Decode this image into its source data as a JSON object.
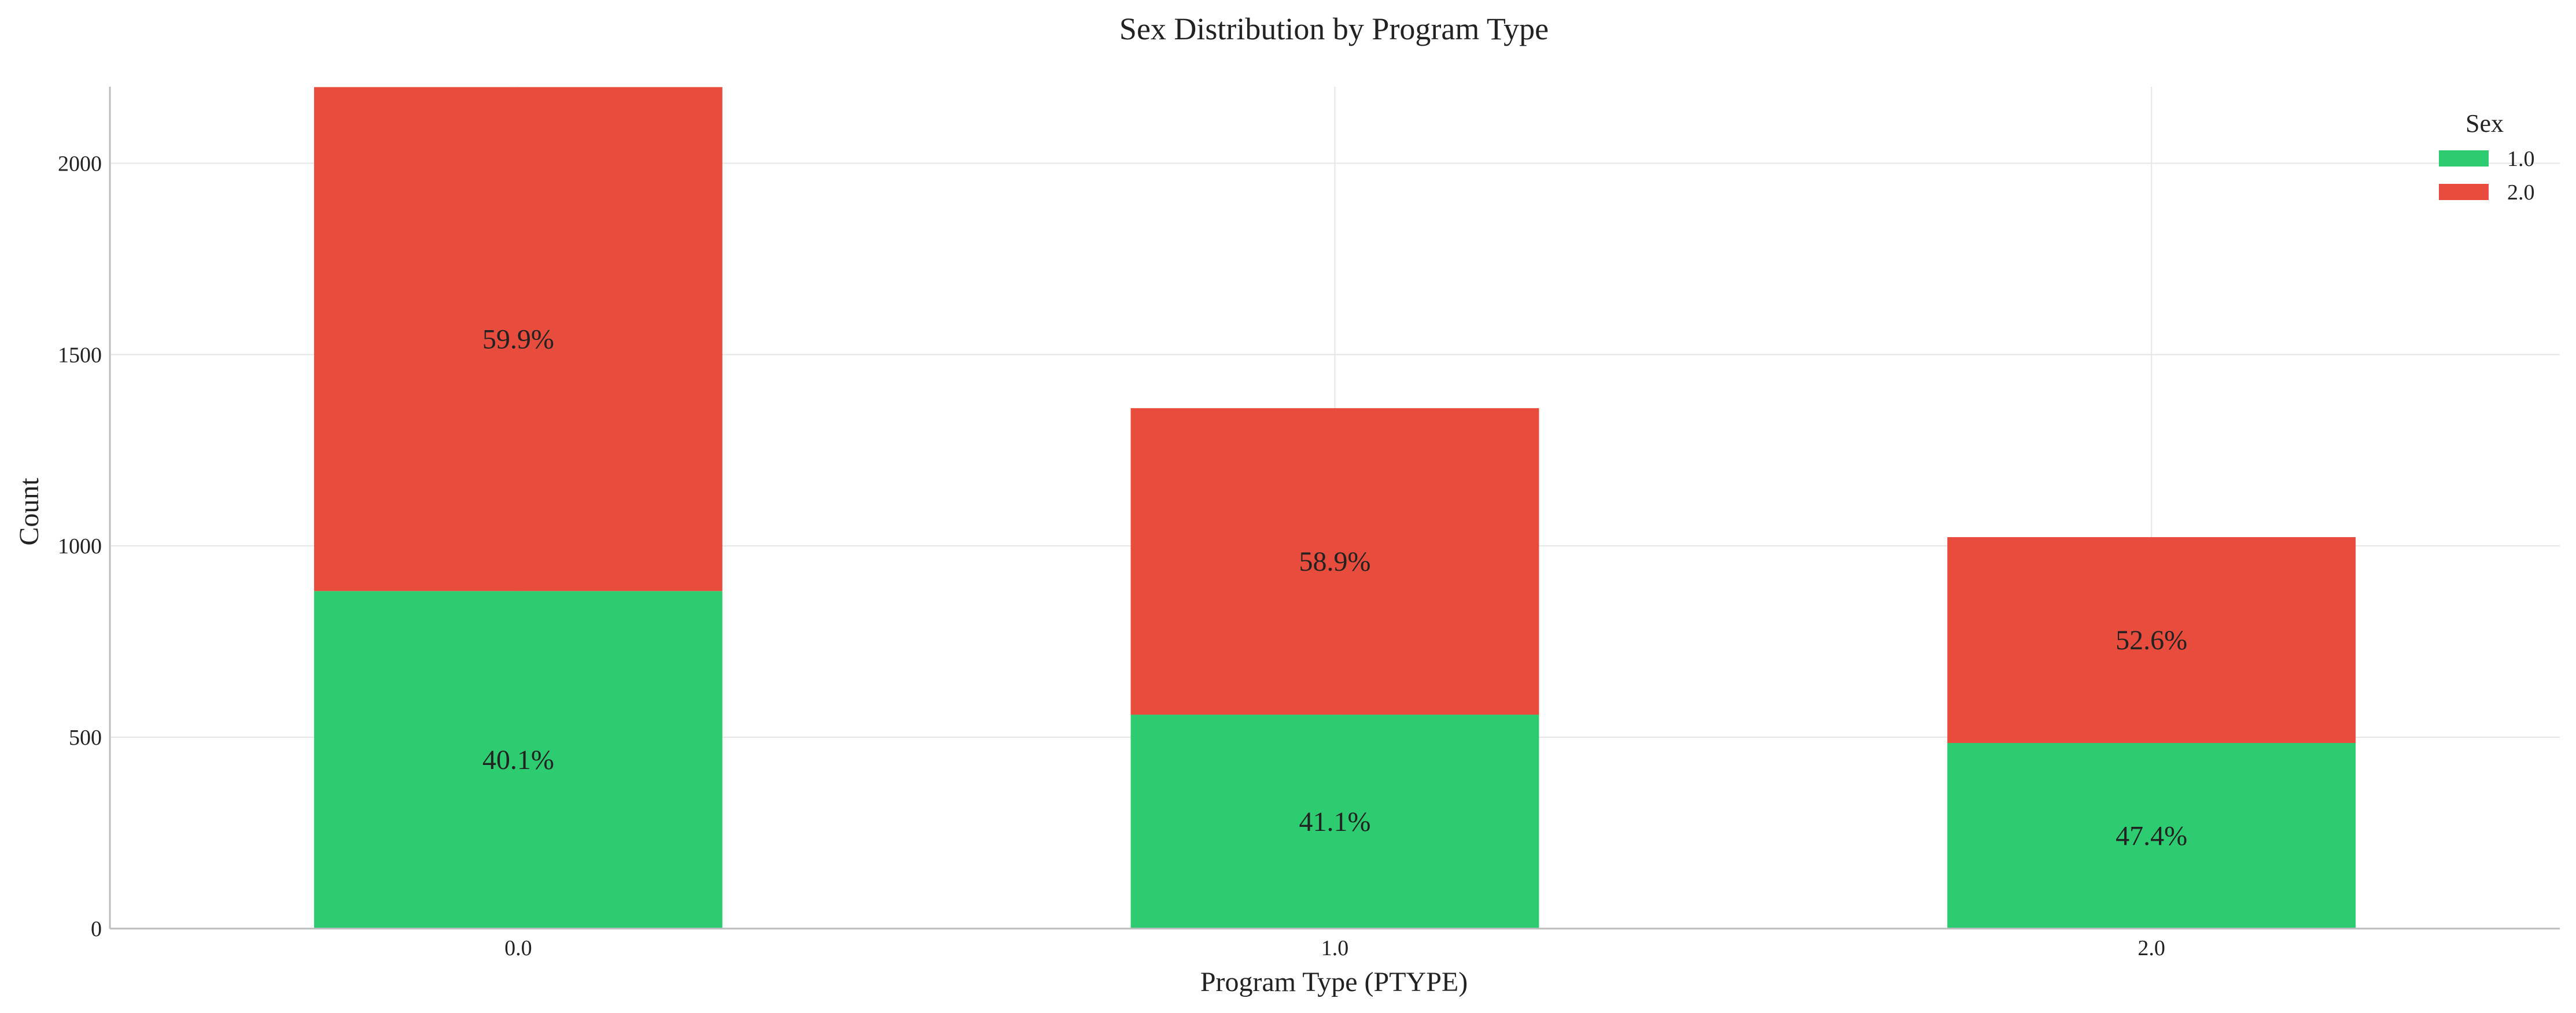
{
  "chart_data": {
    "type": "bar",
    "stacked": true,
    "title": "Sex Distribution by Program Type",
    "xlabel": "Program Type (PTYPE)",
    "ylabel": "Count",
    "categories": [
      "0.0",
      "1.0",
      "2.0"
    ],
    "ylim": [
      0,
      2200
    ],
    "yticks": [
      0,
      500,
      1000,
      1500,
      2000
    ],
    "grid": true,
    "legend": {
      "title": "Sex",
      "position": "top-right"
    },
    "series": [
      {
        "name": "1.0",
        "color": "#2ecc71",
        "values": [
          882,
          559,
          485
        ],
        "labels": [
          "40.1%",
          "41.1%",
          "47.4%"
        ]
      },
      {
        "name": "2.0",
        "color": "#e74c3c",
        "values": [
          1317,
          801,
          538
        ],
        "labels": [
          "59.9%",
          "58.9%",
          "52.6%"
        ]
      }
    ]
  }
}
